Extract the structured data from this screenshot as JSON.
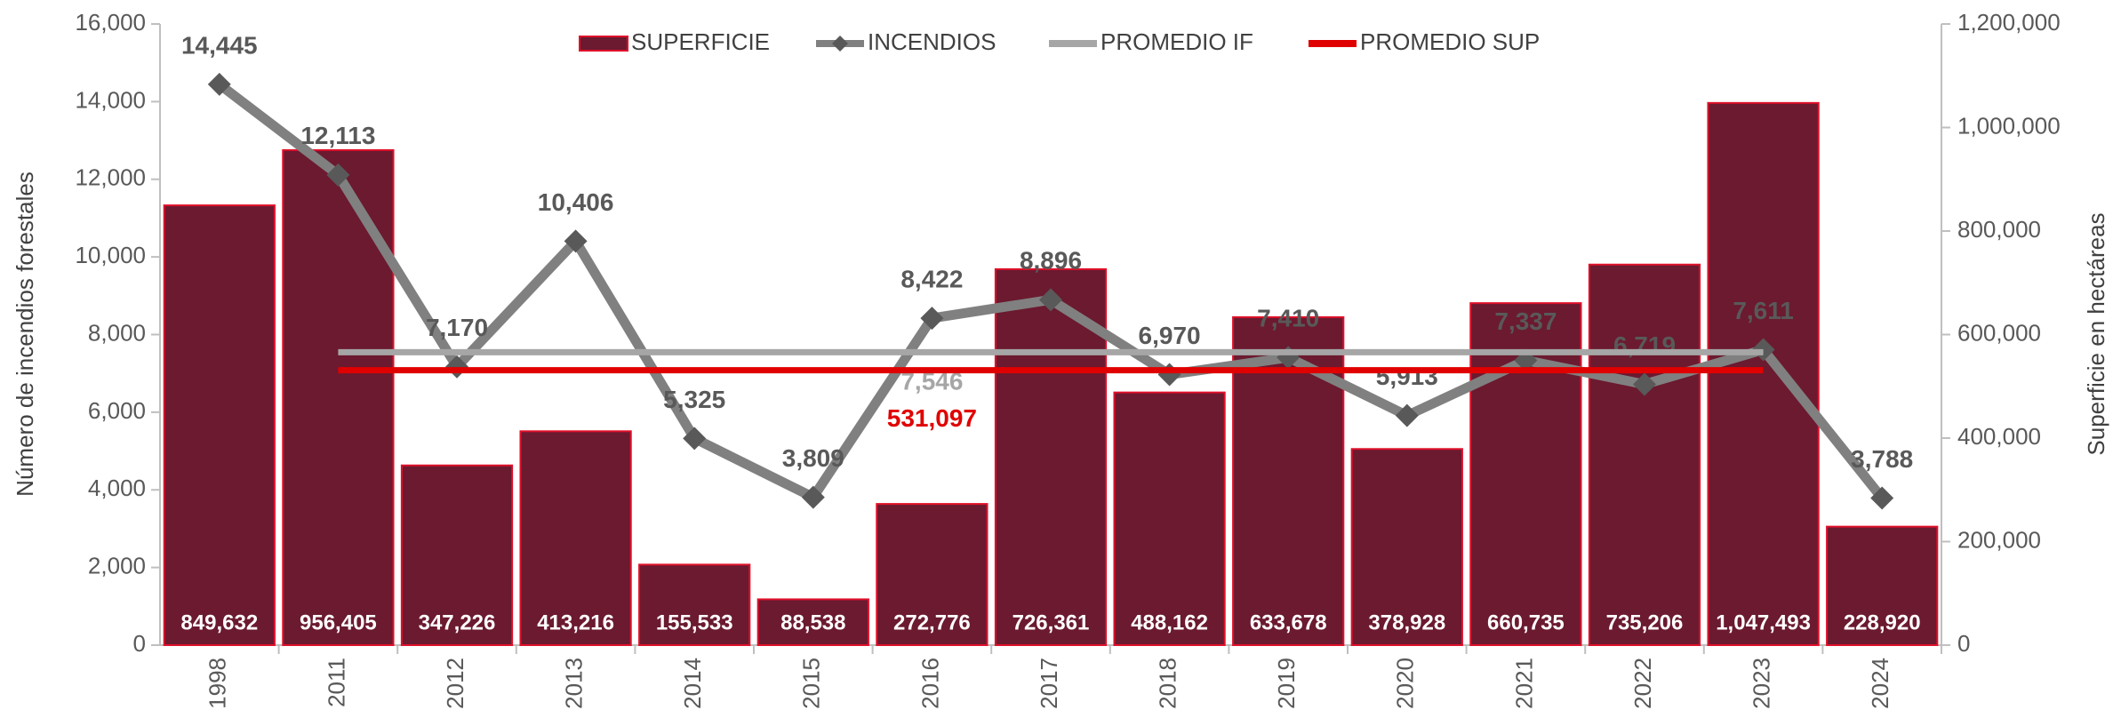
{
  "chart_data": {
    "type": "combo",
    "categories": [
      "1998",
      "2011",
      "2012",
      "2013",
      "2014",
      "2015",
      "2016",
      "2017",
      "2018",
      "2019",
      "2020",
      "2021",
      "2022",
      "2023",
      "2024"
    ],
    "ylabel": "Número de incendios forestales",
    "y2label": "Superficie en hectáreas",
    "ylim": [
      0,
      16000
    ],
    "yticks": [
      0,
      {
        "value": 2000,
        "label": "2,000"
      },
      {
        "value": 4000,
        "label": "4,000"
      },
      {
        "value": 6000,
        "label": "6,000"
      },
      {
        "value": 8000,
        "label": "8,000"
      },
      {
        "value": 10000,
        "label": "10,000"
      },
      {
        "value": 12000,
        "label": "12,000"
      },
      {
        "value": 14000,
        "label": "14,000"
      },
      {
        "value": 16000,
        "label": "16,000"
      }
    ],
    "y2lim": [
      0,
      1200000
    ],
    "y2ticks": [
      0,
      {
        "value": 200000,
        "label": "200,000"
      },
      {
        "value": 400000,
        "label": "400,000"
      },
      {
        "value": 600000,
        "label": "600,000"
      },
      {
        "value": 800000,
        "label": "800,000"
      },
      {
        "value": 1000000,
        "label": "1,000,000"
      },
      {
        "value": 1200000,
        "label": "1,200,000"
      }
    ],
    "legend": "top",
    "series": [
      {
        "name": "SUPERFICIE",
        "type": "bar",
        "axis": "y2",
        "color": "#6b1a30",
        "edge": "#e0102a",
        "values": [
          849632,
          956405,
          347226,
          413216,
          155533,
          88538,
          272776,
          726361,
          488162,
          633678,
          378928,
          660735,
          735206,
          1047493,
          228920
        ],
        "value_labels": [
          "849,632",
          "956,405",
          "347,226",
          "413,216",
          "155,533",
          "88,538",
          "272,776",
          "726,361",
          "488,162",
          "633,678",
          "378,928",
          "660,735",
          "735,206",
          "1,047,493",
          "228,920"
        ]
      },
      {
        "name": "INCENDIOS",
        "type": "line",
        "axis": "y",
        "color": "#808080",
        "marker_color": "#595959",
        "values": [
          14445,
          12113,
          7170,
          10406,
          5325,
          3809,
          8422,
          8896,
          6970,
          7410,
          5913,
          7337,
          6719,
          7611,
          3788
        ],
        "value_labels": [
          "14,445",
          "12,113",
          "7,170",
          "10,406",
          "5,325",
          "3,809",
          "8,422",
          "8,896",
          "6,970",
          "7,410",
          "5,913",
          "7,337",
          "6,719",
          "7,611",
          "3,788"
        ]
      },
      {
        "name": "PROMEDIO IF",
        "type": "line",
        "axis": "y",
        "color": "#a6a6a6",
        "values": [
          null,
          7546,
          7546,
          7546,
          7546,
          7546,
          7546,
          7546,
          7546,
          7546,
          7546,
          7546,
          7546,
          7546,
          null
        ],
        "value_labels": [
          null,
          null,
          null,
          null,
          null,
          null,
          "7,546",
          null,
          null,
          null,
          null,
          null,
          null,
          null,
          null
        ]
      },
      {
        "name": "PROMEDIO SUP",
        "type": "line",
        "axis": "y2",
        "color": "#e00000",
        "values": [
          null,
          531097,
          531097,
          531097,
          531097,
          531097,
          531097,
          531097,
          531097,
          531097,
          531097,
          531097,
          531097,
          531097,
          null
        ],
        "value_labels": [
          null,
          null,
          null,
          null,
          null,
          null,
          "531,097",
          null,
          null,
          null,
          null,
          null,
          null,
          null,
          null
        ]
      }
    ]
  }
}
